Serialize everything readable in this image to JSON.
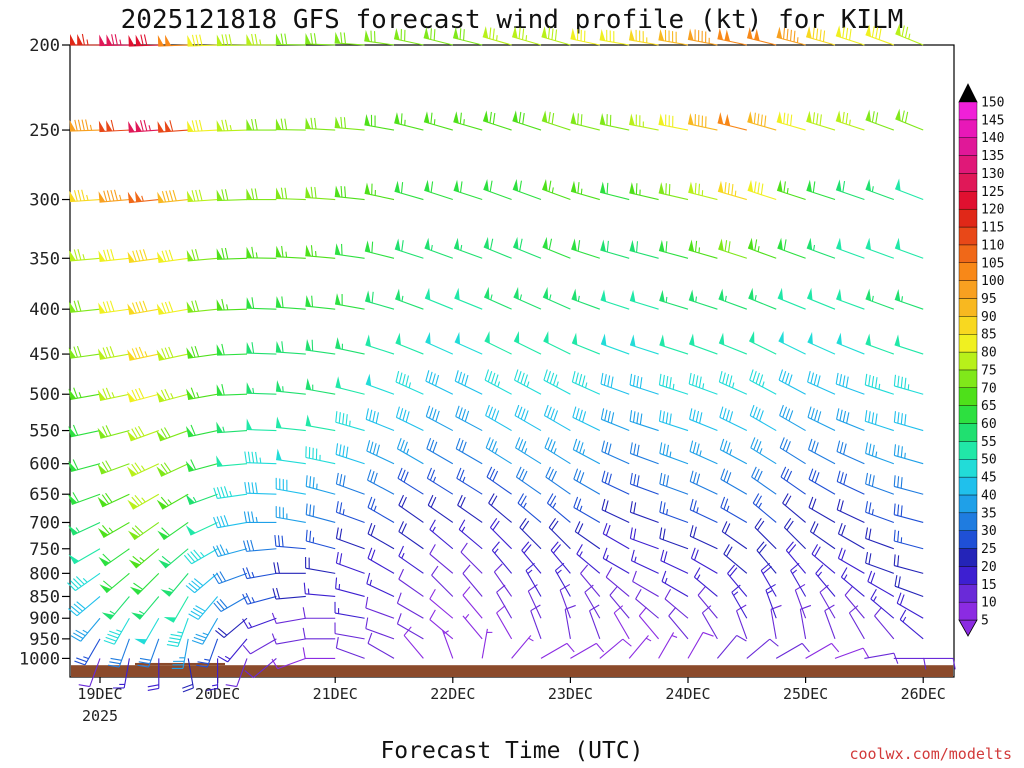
{
  "chart_data": {
    "type": "wind-barb-timeheight",
    "title": "2025121818 GFS forecast wind profile (kt) for KILM",
    "xlabel": "Forecast Time (UTC)",
    "credit": "coolwx.com/modelts",
    "y_axis": {
      "quantity": "pressure (hPa)",
      "range": [
        1050,
        200
      ],
      "ticks": [
        "200",
        "250",
        "300",
        "350",
        "400",
        "450",
        "500",
        "550",
        "600",
        "650",
        "700",
        "750",
        "800",
        "850",
        "900",
        "950",
        "1000"
      ]
    },
    "x_axis": {
      "ticks": [
        "19DEC",
        "20DEC",
        "21DEC",
        "22DEC",
        "23DEC",
        "24DEC",
        "25DEC",
        "26DEC"
      ],
      "year": "2025"
    },
    "colorbar": {
      "unit": "kt",
      "levels": [
        5,
        10,
        15,
        20,
        25,
        30,
        35,
        40,
        45,
        50,
        55,
        60,
        65,
        70,
        75,
        80,
        85,
        90,
        95,
        100,
        105,
        110,
        115,
        120,
        125,
        130,
        135,
        140,
        145,
        150
      ],
      "labels": [
        "5",
        "10",
        "15",
        "20",
        "25",
        "30",
        "35",
        "40",
        "45",
        "50",
        "55",
        "60",
        "65",
        "70",
        "75",
        "80",
        "85",
        "90",
        "95",
        "100",
        "105",
        "110",
        "115",
        "120",
        "125",
        "130",
        "135",
        "140",
        "145",
        "150"
      ],
      "colors": [
        "#8b2be2",
        "#6a2ad8",
        "#3d1fd1",
        "#2424b8",
        "#1f50d6",
        "#1f7ce0",
        "#1fa0e8",
        "#20c0ec",
        "#22dcd8",
        "#21e8a8",
        "#20e070",
        "#2de040",
        "#4ee01a",
        "#80e81a",
        "#b8f01a",
        "#f0f020",
        "#f8d820",
        "#f8b820",
        "#f8a020",
        "#f88818",
        "#f06818",
        "#e84818",
        "#e02818",
        "#e01030",
        "#e01858",
        "#e01878",
        "#e01898",
        "#e818b8",
        "#f020d8",
        "#e020f0"
      ]
    },
    "surface_color": "#8b4a2b",
    "levels_hpa": [
      1000,
      950,
      900,
      850,
      800,
      750,
      700,
      650,
      600,
      550,
      500,
      450,
      400,
      350,
      300,
      250,
      200
    ],
    "time_hours": [
      0,
      6,
      12,
      18,
      24,
      30,
      36,
      42,
      48,
      54,
      60,
      66,
      72,
      78,
      84,
      90,
      96,
      102,
      108,
      114,
      120,
      126,
      132,
      138,
      144,
      150,
      156,
      162,
      168,
      174
    ],
    "wind_speed_kt": [
      [
        10,
        15,
        18,
        20,
        15,
        12,
        10,
        8,
        8,
        10,
        10,
        8,
        6,
        5,
        6,
        8,
        8,
        8,
        6,
        6,
        8,
        10,
        10,
        10,
        8,
        8,
        10,
        10,
        12,
        10
      ],
      [
        25,
        30,
        32,
        35,
        25,
        15,
        12,
        10,
        10,
        12,
        12,
        10,
        8,
        6,
        8,
        10,
        10,
        10,
        8,
        8,
        10,
        10,
        12,
        12,
        10,
        10,
        10,
        12,
        15,
        12
      ],
      [
        35,
        45,
        48,
        45,
        35,
        20,
        15,
        12,
        12,
        15,
        12,
        10,
        8,
        8,
        10,
        12,
        12,
        12,
        10,
        10,
        10,
        12,
        15,
        15,
        12,
        12,
        12,
        15,
        18,
        15
      ],
      [
        40,
        55,
        55,
        50,
        40,
        30,
        25,
        20,
        15,
        15,
        15,
        12,
        10,
        10,
        12,
        15,
        15,
        12,
        12,
        12,
        15,
        15,
        18,
        18,
        15,
        15,
        15,
        18,
        20,
        18
      ],
      [
        45,
        60,
        62,
        55,
        40,
        30,
        25,
        22,
        20,
        18,
        18,
        15,
        12,
        12,
        15,
        18,
        18,
        15,
        15,
        15,
        18,
        18,
        20,
        20,
        18,
        18,
        18,
        20,
        22,
        20
      ],
      [
        50,
        62,
        65,
        58,
        45,
        35,
        30,
        28,
        25,
        22,
        22,
        20,
        15,
        15,
        18,
        20,
        22,
        20,
        18,
        18,
        20,
        22,
        22,
        22,
        20,
        20,
        20,
        22,
        25,
        22
      ],
      [
        55,
        65,
        70,
        60,
        50,
        40,
        35,
        35,
        30,
        25,
        25,
        22,
        20,
        20,
        22,
        25,
        25,
        25,
        22,
        22,
        25,
        25,
        25,
        25,
        22,
        22,
        22,
        25,
        28,
        25
      ],
      [
        60,
        68,
        75,
        65,
        55,
        45,
        40,
        42,
        35,
        30,
        30,
        28,
        25,
        25,
        28,
        30,
        30,
        30,
        28,
        28,
        30,
        30,
        30,
        30,
        28,
        28,
        28,
        30,
        30,
        28
      ],
      [
        60,
        70,
        75,
        70,
        60,
        50,
        45,
        48,
        45,
        40,
        38,
        35,
        32,
        32,
        35,
        35,
        35,
        35,
        32,
        32,
        35,
        35,
        35,
        35,
        32,
        32,
        32,
        35,
        35,
        32
      ],
      [
        62,
        72,
        78,
        72,
        62,
        55,
        50,
        52,
        50,
        45,
        42,
        40,
        38,
        38,
        40,
        40,
        40,
        40,
        38,
        38,
        40,
        40,
        40,
        40,
        38,
        38,
        38,
        40,
        40,
        38
      ],
      [
        65,
        75,
        80,
        75,
        65,
        60,
        55,
        55,
        55,
        50,
        48,
        45,
        42,
        42,
        45,
        45,
        45,
        45,
        42,
        42,
        45,
        45,
        45,
        45,
        42,
        42,
        42,
        45,
        45,
        42
      ],
      [
        70,
        78,
        85,
        78,
        68,
        62,
        58,
        58,
        58,
        55,
        52,
        50,
        48,
        48,
        50,
        50,
        50,
        50,
        48,
        48,
        50,
        50,
        50,
        50,
        48,
        48,
        48,
        50,
        50,
        48
      ],
      [
        72,
        80,
        88,
        80,
        70,
        65,
        62,
        62,
        62,
        60,
        58,
        55,
        52,
        52,
        55,
        55,
        55,
        55,
        52,
        52,
        55,
        55,
        55,
        55,
        52,
        52,
        52,
        55,
        55,
        52
      ],
      [
        75,
        82,
        88,
        82,
        72,
        68,
        65,
        65,
        65,
        62,
        60,
        58,
        55,
        55,
        58,
        58,
        60,
        60,
        58,
        58,
        60,
        65,
        70,
        65,
        60,
        55,
        52,
        50,
        50,
        48
      ],
      [
        85,
        95,
        105,
        92,
        78,
        72,
        70,
        70,
        70,
        68,
        65,
        62,
        60,
        60,
        62,
        62,
        65,
        65,
        62,
        65,
        70,
        75,
        85,
        80,
        65,
        60,
        58,
        55,
        52,
        50
      ],
      [
        95,
        110,
        125,
        110,
        82,
        75,
        72,
        72,
        72,
        70,
        68,
        65,
        65,
        65,
        68,
        68,
        70,
        70,
        72,
        75,
        80,
        90,
        100,
        92,
        80,
        78,
        75,
        72,
        70,
        65
      ],
      [
        115,
        125,
        120,
        100,
        80,
        78,
        75,
        72,
        72,
        72,
        70,
        70,
        70,
        72,
        75,
        75,
        78,
        80,
        82,
        85,
        90,
        95,
        100,
        100,
        95,
        88,
        82,
        80,
        75,
        70
      ]
    ],
    "wind_dir_deg": [
      [
        200,
        190,
        180,
        170,
        180,
        200,
        230,
        250,
        270,
        290,
        300,
        320,
        340,
        10,
        40,
        60,
        60,
        50,
        40,
        30,
        30,
        40,
        50,
        60,
        60,
        70,
        80,
        90,
        90,
        80
      ],
      [
        210,
        200,
        200,
        190,
        200,
        220,
        240,
        260,
        270,
        280,
        290,
        300,
        310,
        320,
        330,
        340,
        350,
        340,
        330,
        320,
        320,
        330,
        340,
        350,
        350,
        340,
        330,
        320,
        310,
        300
      ],
      [
        220,
        210,
        210,
        200,
        210,
        230,
        250,
        260,
        270,
        280,
        290,
        300,
        310,
        320,
        330,
        335,
        340,
        330,
        320,
        310,
        310,
        320,
        330,
        340,
        340,
        330,
        320,
        310,
        300,
        290
      ],
      [
        230,
        220,
        220,
        210,
        220,
        240,
        255,
        265,
        275,
        285,
        295,
        305,
        315,
        320,
        325,
        330,
        330,
        320,
        310,
        300,
        300,
        310,
        320,
        330,
        330,
        320,
        310,
        300,
        290,
        280
      ],
      [
        235,
        230,
        225,
        220,
        230,
        250,
        260,
        270,
        280,
        290,
        300,
        305,
        310,
        315,
        320,
        320,
        320,
        310,
        300,
        295,
        295,
        300,
        310,
        320,
        320,
        310,
        300,
        290,
        285,
        280
      ],
      [
        240,
        235,
        230,
        230,
        240,
        255,
        265,
        275,
        285,
        290,
        300,
        305,
        310,
        310,
        315,
        315,
        315,
        305,
        300,
        290,
        290,
        295,
        305,
        315,
        315,
        305,
        300,
        290,
        285,
        280
      ],
      [
        245,
        240,
        235,
        235,
        245,
        260,
        270,
        280,
        285,
        290,
        300,
        305,
        305,
        305,
        310,
        310,
        310,
        300,
        295,
        290,
        290,
        295,
        300,
        310,
        310,
        300,
        295,
        290,
        285,
        280
      ],
      [
        250,
        245,
        240,
        240,
        250,
        262,
        272,
        280,
        285,
        290,
        298,
        302,
        302,
        302,
        305,
        305,
        305,
        300,
        295,
        290,
        290,
        295,
        300,
        305,
        305,
        300,
        295,
        290,
        285,
        282
      ],
      [
        255,
        250,
        245,
        245,
        255,
        265,
        272,
        278,
        282,
        288,
        295,
        300,
        300,
        300,
        302,
        302,
        302,
        298,
        294,
        290,
        290,
        294,
        298,
        302,
        302,
        298,
        294,
        290,
        286,
        284
      ],
      [
        258,
        255,
        250,
        250,
        258,
        266,
        272,
        276,
        280,
        286,
        292,
        296,
        298,
        298,
        300,
        300,
        300,
        296,
        292,
        288,
        288,
        292,
        296,
        300,
        300,
        296,
        292,
        288,
        286,
        284
      ],
      [
        260,
        258,
        255,
        255,
        260,
        268,
        272,
        276,
        280,
        284,
        290,
        294,
        296,
        296,
        298,
        298,
        298,
        294,
        290,
        288,
        288,
        290,
        294,
        298,
        298,
        294,
        290,
        288,
        286,
        285
      ],
      [
        262,
        260,
        258,
        258,
        262,
        268,
        272,
        274,
        278,
        282,
        288,
        292,
        294,
        294,
        296,
        296,
        296,
        292,
        290,
        288,
        288,
        290,
        292,
        296,
        296,
        294,
        292,
        290,
        288,
        287
      ],
      [
        264,
        262,
        260,
        260,
        264,
        268,
        272,
        274,
        276,
        280,
        286,
        290,
        292,
        292,
        294,
        294,
        294,
        290,
        288,
        287,
        287,
        288,
        290,
        292,
        292,
        292,
        290,
        290,
        289,
        288
      ],
      [
        265,
        264,
        262,
        262,
        265,
        268,
        271,
        273,
        275,
        278,
        284,
        288,
        290,
        290,
        292,
        292,
        292,
        288,
        286,
        285,
        285,
        286,
        288,
        290,
        290,
        290,
        290,
        290,
        290,
        290
      ],
      [
        266,
        265,
        264,
        264,
        266,
        268,
        270,
        272,
        274,
        276,
        282,
        286,
        288,
        288,
        290,
        290,
        290,
        286,
        284,
        283,
        283,
        284,
        286,
        288,
        288,
        288,
        289,
        290,
        291,
        292
      ],
      [
        268,
        267,
        266,
        266,
        267,
        268,
        270,
        271,
        273,
        275,
        280,
        284,
        286,
        286,
        288,
        288,
        288,
        284,
        282,
        281,
        281,
        282,
        284,
        286,
        286,
        287,
        288,
        290,
        292,
        294
      ],
      [
        270,
        269,
        268,
        268,
        268,
        269,
        270,
        271,
        272,
        274,
        278,
        282,
        284,
        284,
        286,
        286,
        286,
        282,
        280,
        280,
        280,
        281,
        282,
        284,
        285,
        286,
        288,
        290,
        292,
        294
      ]
    ]
  }
}
